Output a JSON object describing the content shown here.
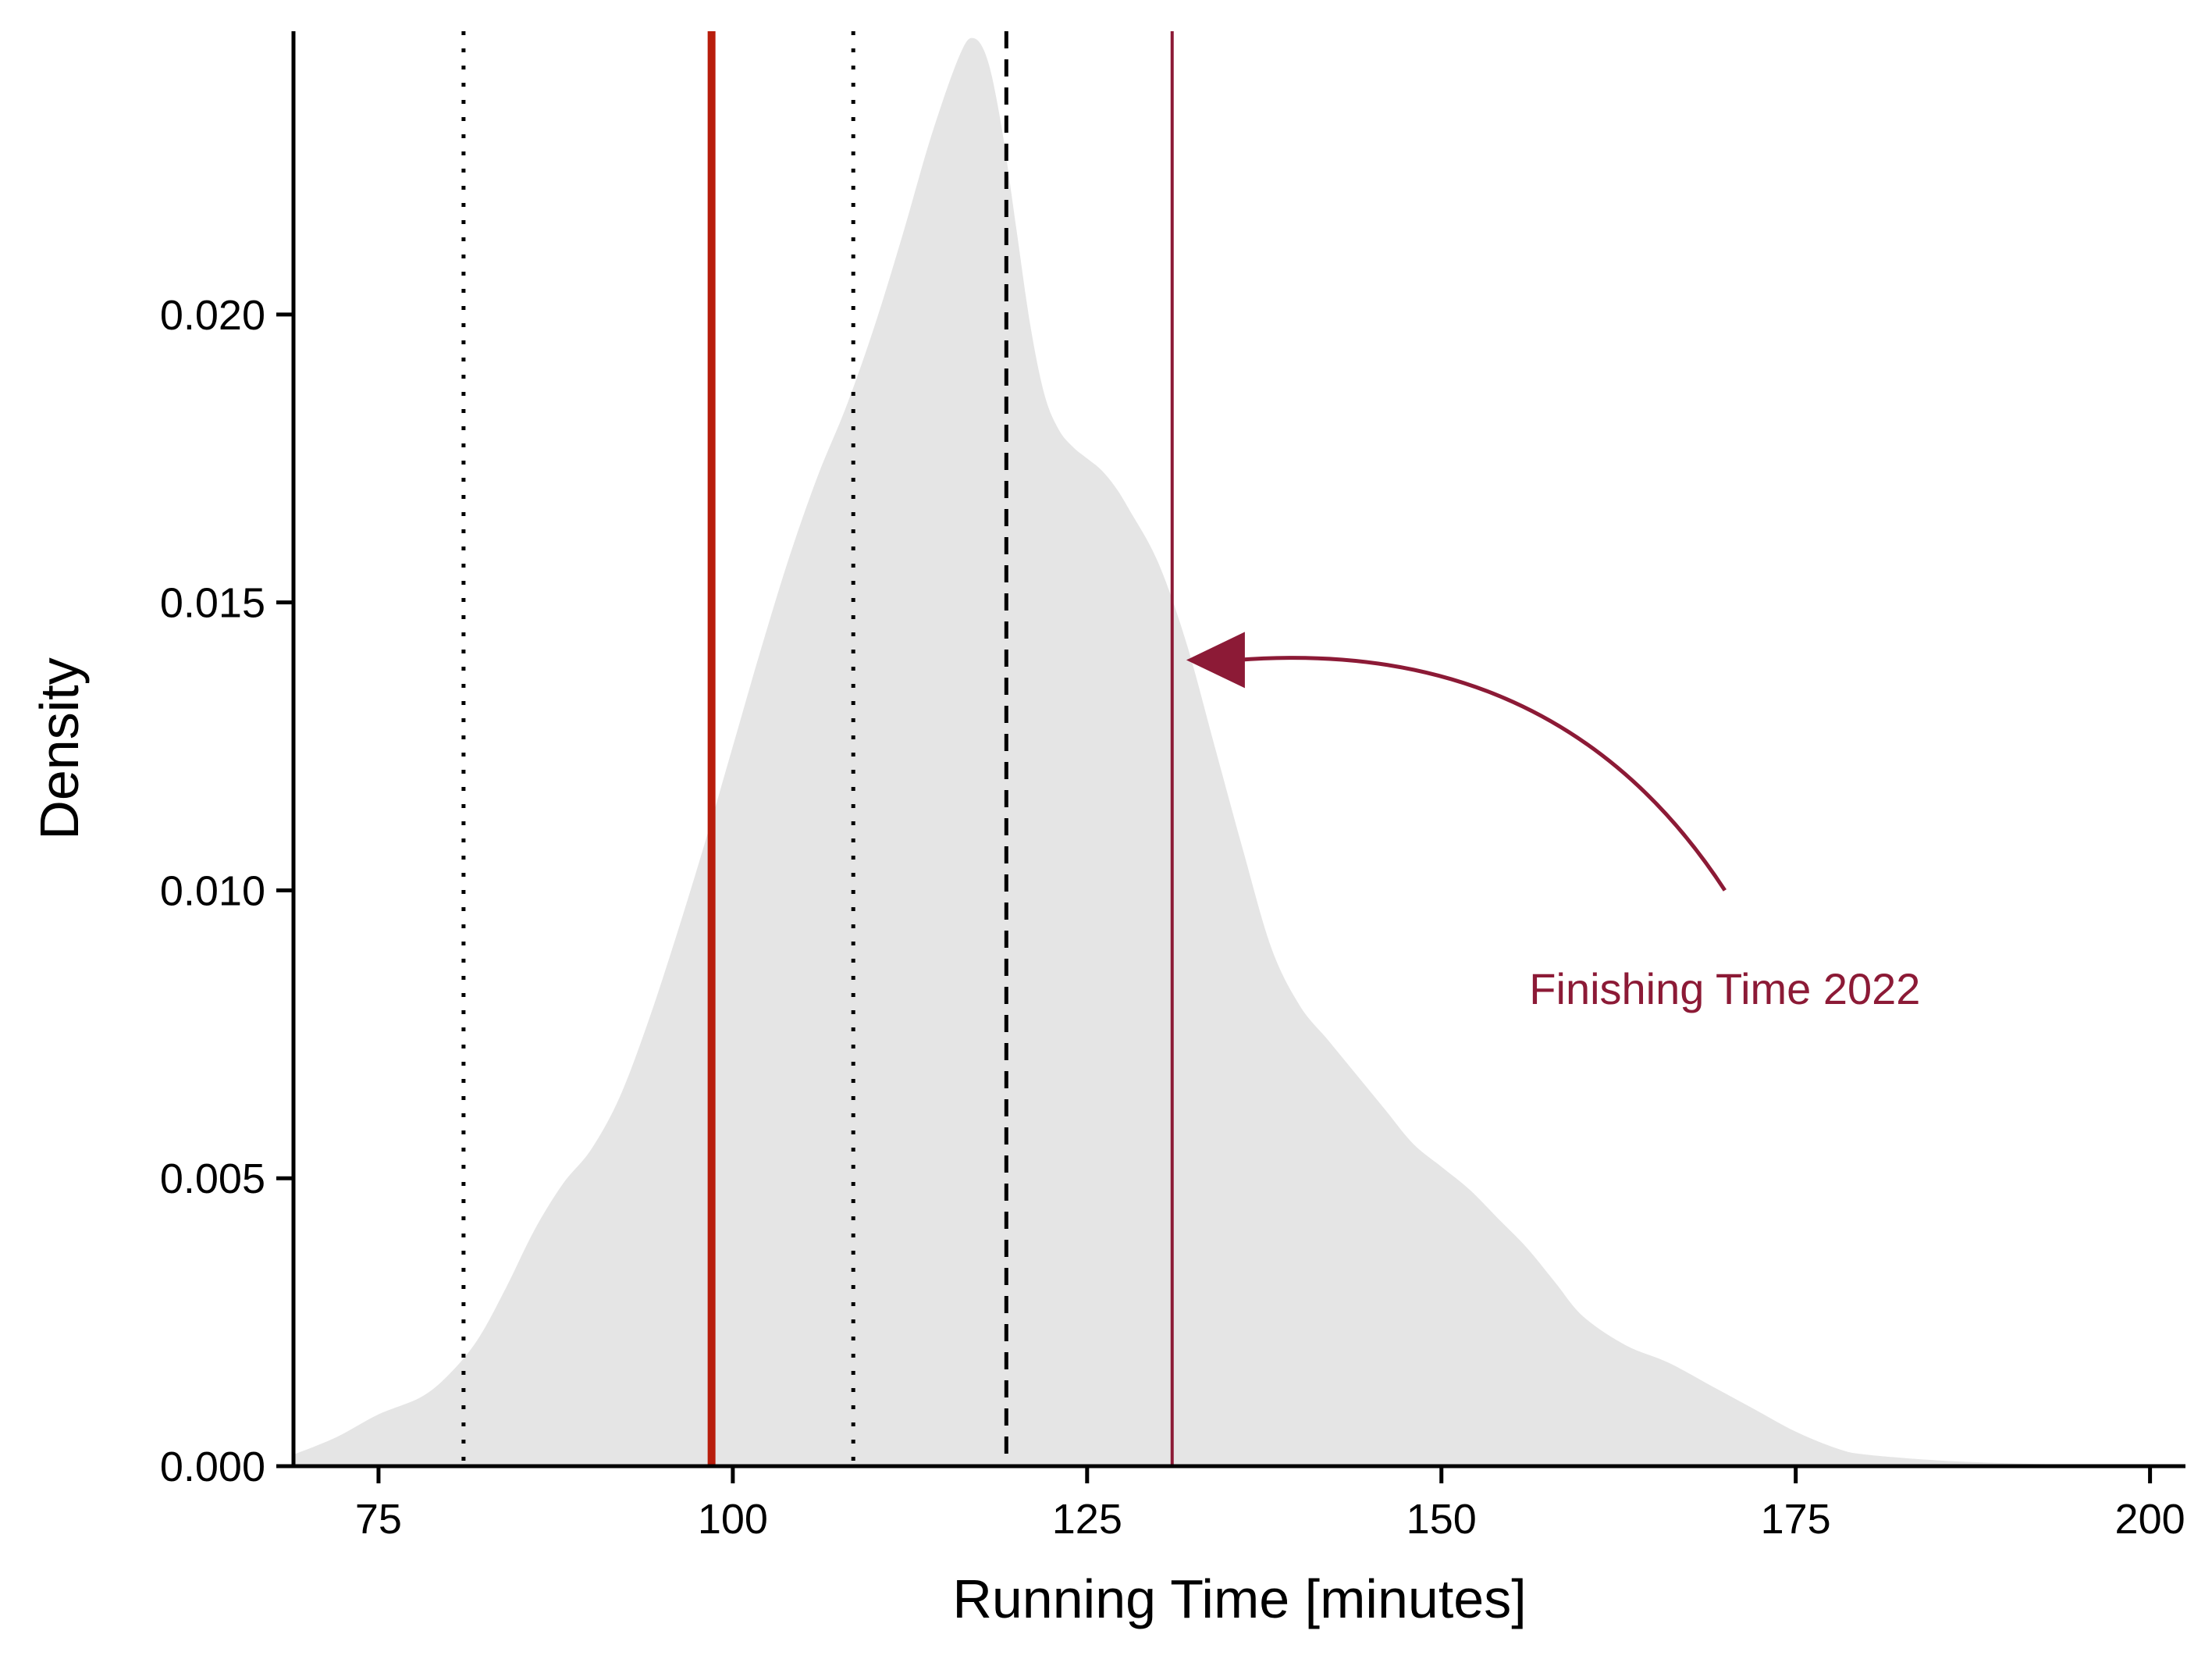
{
  "chart_data": {
    "type": "area",
    "title": "",
    "xlabel": "Running Time [minutes]",
    "ylabel": "Density",
    "xlim": [
      69,
      202.5
    ],
    "ylim": [
      0,
      0.02492
    ],
    "x_ticks": [
      75,
      100,
      125,
      150,
      175,
      200
    ],
    "x_tick_labels": [
      "75",
      "100",
      "125",
      "150",
      "175",
      "200"
    ],
    "y_ticks": [
      0.0,
      0.005,
      0.01,
      0.015,
      0.02
    ],
    "y_tick_labels": [
      "0.000",
      "0.005",
      "0.010",
      "0.015",
      "0.020"
    ],
    "grid": false,
    "legend": "none",
    "density_fill_color": "#e5e5e5",
    "density": {
      "x": [
        69,
        72,
        75,
        78,
        80,
        82,
        84,
        86,
        88,
        90,
        92,
        94,
        96,
        98,
        100,
        102,
        104,
        106,
        108,
        110,
        112,
        114,
        116,
        117,
        118,
        119,
        120,
        121,
        122,
        123,
        124,
        125,
        126,
        127,
        128,
        130,
        132,
        134,
        136,
        138,
        140,
        142,
        144,
        146,
        148,
        150,
        152,
        154,
        156,
        158,
        160,
        163,
        166,
        169,
        172,
        175,
        178,
        180,
        185,
        190,
        195,
        198
      ],
      "y": [
        0.0002,
        0.0005,
        0.0009,
        0.0012,
        0.0016,
        0.0022,
        0.0031,
        0.0041,
        0.0049,
        0.0055,
        0.0064,
        0.0077,
        0.0092,
        0.0108,
        0.0125,
        0.0142,
        0.0158,
        0.0172,
        0.0184,
        0.0198,
        0.0214,
        0.0231,
        0.0245,
        0.0248,
        0.0244,
        0.0232,
        0.0215,
        0.0198,
        0.0186,
        0.018,
        0.0177,
        0.0175,
        0.0173,
        0.017,
        0.0166,
        0.0157,
        0.0143,
        0.0125,
        0.0107,
        0.009,
        0.008,
        0.0074,
        0.0068,
        0.0062,
        0.0056,
        0.0052,
        0.0048,
        0.0043,
        0.0038,
        0.0032,
        0.0026,
        0.0021,
        0.0018,
        0.0014,
        0.001,
        0.0006,
        0.0003,
        0.0002,
        0.0001,
        5e-05,
        2e-05,
        0.0
      ]
    },
    "vertical_lines": [
      {
        "x": 81.0,
        "style": "dotted",
        "color": "#000000",
        "width": 5
      },
      {
        "x": 98.5,
        "style": "solid",
        "color": "#b81d0c",
        "width": 10
      },
      {
        "x": 108.5,
        "style": "dotted",
        "color": "#000000",
        "width": 5
      },
      {
        "x": 119.3,
        "style": "dashed",
        "color": "#000000",
        "width": 5
      },
      {
        "x": 131.0,
        "style": "solid",
        "color": "#8c1a36",
        "width": 4
      }
    ],
    "annotation": {
      "text": "Finishing Time 2022",
      "color": "#8c1a36",
      "arrow_from": [
        170,
        0.01
      ],
      "arrow_to": [
        132,
        0.014
      ],
      "text_at": [
        170,
        0.0083
      ]
    }
  }
}
